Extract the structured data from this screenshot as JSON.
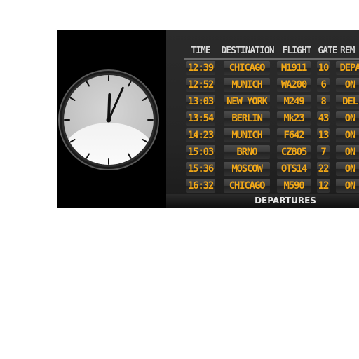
{
  "board": {
    "headers": {
      "time": "TIME",
      "destination": "DESTINATION",
      "flight": "FLIGHT",
      "gate": "GATE",
      "remarks": "REM"
    },
    "rows": [
      {
        "time": "12:39",
        "destination": "CHICAGO",
        "flight": "M1911",
        "gate": "10",
        "remarks": "DEPA"
      },
      {
        "time": "12:52",
        "destination": "MUNICH",
        "flight": "WA200",
        "gate": "6",
        "remarks": "ON"
      },
      {
        "time": "13:03",
        "destination": "NEW YORK",
        "flight": "M249",
        "gate": "8",
        "remarks": "DEL"
      },
      {
        "time": "13:54",
        "destination": "BERLIN",
        "flight": "Mk23",
        "gate": "43",
        "remarks": "ON"
      },
      {
        "time": "14:23",
        "destination": "MUNICH",
        "flight": "F642",
        "gate": "13",
        "remarks": "ON"
      },
      {
        "time": "15:03",
        "destination": "BRNO",
        "flight": "CZ805",
        "gate": "7",
        "remarks": "ON"
      },
      {
        "time": "15:36",
        "destination": "MOSCOW",
        "flight": "OTS14",
        "gate": "22",
        "remarks": "ON"
      },
      {
        "time": "16:32",
        "destination": "CHICAGO",
        "flight": "M590",
        "gate": "12",
        "remarks": "ON"
      }
    ],
    "footer": "DEPARTURES"
  },
  "clock": {
    "hour": 12,
    "minute": 4
  },
  "colors": {
    "flap_text": "#f2a817",
    "header_text": "#d8d8d8",
    "background": "#000000"
  }
}
